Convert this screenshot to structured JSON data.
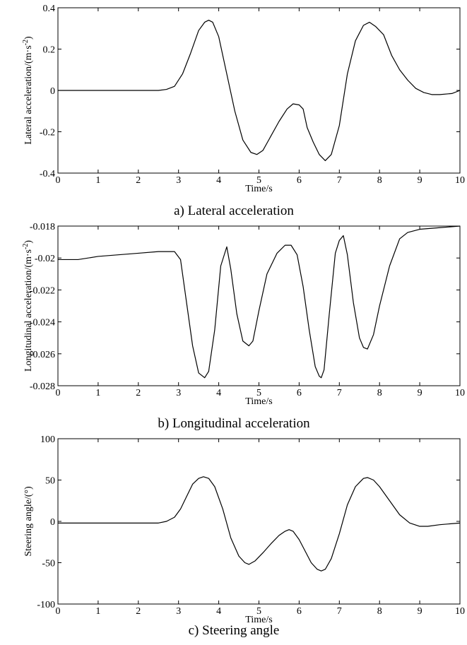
{
  "chart_data": [
    {
      "type": "line",
      "caption": "a) Lateral acceleration",
      "xlabel": "Time/s",
      "ylabel": "Lateral acceleration/(m·s-2)",
      "ylabel_base": "Lateral acceleration/(m·s",
      "ylabel_sup": "-2",
      "ylabel_tail": ")",
      "xlim": [
        0,
        10
      ],
      "ylim": [
        -0.4,
        0.4
      ],
      "xticks": [
        0,
        1,
        2,
        3,
        4,
        5,
        6,
        7,
        8,
        9,
        10
      ],
      "xtick_labels": [
        "0",
        "1",
        "2",
        "3",
        "4",
        "5",
        "6",
        "7",
        "8",
        "9",
        "10"
      ],
      "yticks": [
        -0.4,
        -0.2,
        0,
        0.2,
        0.4
      ],
      "ytick_labels": [
        "-0.4",
        "-0.2",
        "0",
        "0.2",
        "0.4"
      ],
      "grid": false,
      "series": [
        {
          "x": [
            0,
            0.5,
            1,
            1.5,
            2,
            2.5,
            2.7,
            2.9,
            3.1,
            3.3,
            3.5,
            3.65,
            3.75,
            3.85,
            4.0,
            4.2,
            4.4,
            4.6,
            4.8,
            4.95,
            5.1,
            5.3,
            5.5,
            5.7,
            5.85,
            6.0,
            6.1,
            6.2,
            6.35,
            6.5,
            6.65,
            6.8,
            7.0,
            7.2,
            7.4,
            7.6,
            7.75,
            7.9,
            8.1,
            8.3,
            8.5,
            8.7,
            8.9,
            9.1,
            9.3,
            9.5,
            9.8,
            10.0
          ],
          "y": [
            0,
            0,
            0,
            0,
            0,
            0,
            0.005,
            0.02,
            0.08,
            0.18,
            0.29,
            0.33,
            0.34,
            0.33,
            0.26,
            0.08,
            -0.1,
            -0.24,
            -0.3,
            -0.31,
            -0.29,
            -0.22,
            -0.15,
            -0.09,
            -0.065,
            -0.07,
            -0.09,
            -0.18,
            -0.25,
            -0.31,
            -0.34,
            -0.31,
            -0.17,
            0.08,
            0.24,
            0.315,
            0.33,
            0.31,
            0.27,
            0.17,
            0.1,
            0.05,
            0.01,
            -0.01,
            -0.02,
            -0.02,
            -0.015,
            0
          ]
        }
      ]
    },
    {
      "type": "line",
      "caption": "b) Longitudinal acceleration",
      "xlabel": "Time/s",
      "ylabel": "Longitudinal acceleration/(m·s-2)",
      "ylabel_base": "Longitudinal acceleration/(m·s",
      "ylabel_sup": "-2",
      "ylabel_tail": ")",
      "xlim": [
        0,
        10
      ],
      "ylim": [
        -0.028,
        -0.018
      ],
      "xticks": [
        0,
        1,
        2,
        3,
        4,
        5,
        6,
        7,
        8,
        9,
        10
      ],
      "xtick_labels": [
        "0",
        "1",
        "2",
        "3",
        "4",
        "5",
        "6",
        "7",
        "8",
        "9",
        "10"
      ],
      "yticks": [
        -0.028,
        -0.026,
        -0.024,
        -0.022,
        -0.02,
        -0.018
      ],
      "ytick_labels": [
        "-0.028",
        "-0.026",
        "-0.024",
        "-0.022",
        "-0.02",
        "-0.018"
      ],
      "grid": false,
      "series": [
        {
          "x": [
            0,
            0.5,
            1,
            1.5,
            2,
            2.5,
            2.9,
            3.05,
            3.2,
            3.35,
            3.5,
            3.6,
            3.65,
            3.75,
            3.9,
            4.05,
            4.2,
            4.3,
            4.45,
            4.6,
            4.75,
            4.85,
            5.0,
            5.2,
            5.45,
            5.65,
            5.8,
            5.95,
            6.1,
            6.25,
            6.4,
            6.5,
            6.55,
            6.62,
            6.75,
            6.9,
            7.0,
            7.1,
            7.2,
            7.35,
            7.5,
            7.6,
            7.7,
            7.85,
            8.0,
            8.25,
            8.5,
            8.7,
            9.0,
            9.5,
            10.0
          ],
          "y": [
            -0.0201,
            -0.0201,
            -0.0199,
            -0.0198,
            -0.0197,
            -0.0196,
            -0.0196,
            -0.0201,
            -0.0228,
            -0.0255,
            -0.0272,
            -0.0274,
            -0.0275,
            -0.0271,
            -0.0245,
            -0.0205,
            -0.0193,
            -0.0207,
            -0.0235,
            -0.0252,
            -0.0255,
            -0.0252,
            -0.0233,
            -0.021,
            -0.0197,
            -0.0192,
            -0.0192,
            -0.0198,
            -0.0218,
            -0.0245,
            -0.0268,
            -0.0274,
            -0.0275,
            -0.027,
            -0.0235,
            -0.0197,
            -0.0189,
            -0.0186,
            -0.0198,
            -0.0228,
            -0.025,
            -0.0256,
            -0.0257,
            -0.0248,
            -0.023,
            -0.0205,
            -0.0188,
            -0.0184,
            -0.0182,
            -0.0181,
            -0.018
          ]
        }
      ]
    },
    {
      "type": "line",
      "caption": "c) Steering angle",
      "xlabel": "Time/s",
      "ylabel": "Steering angle/(°)",
      "ylabel_base": "Steering angle/(°)",
      "ylabel_sup": "",
      "ylabel_tail": "",
      "xlim": [
        0,
        10
      ],
      "ylim": [
        -100,
        100
      ],
      "xticks": [
        0,
        1,
        2,
        3,
        4,
        5,
        6,
        7,
        8,
        9,
        10
      ],
      "xtick_labels": [
        "0",
        "1",
        "2",
        "3",
        "4",
        "5",
        "6",
        "7",
        "8",
        "9",
        "10"
      ],
      "yticks": [
        -100,
        -50,
        0,
        50,
        100
      ],
      "ytick_labels": [
        "-100",
        "-50",
        "0",
        "50",
        "100"
      ],
      "grid": false,
      "series": [
        {
          "x": [
            0,
            0.5,
            1,
            1.5,
            2,
            2.5,
            2.7,
            2.9,
            3.05,
            3.2,
            3.35,
            3.5,
            3.62,
            3.75,
            3.9,
            4.1,
            4.3,
            4.5,
            4.65,
            4.75,
            4.9,
            5.1,
            5.3,
            5.5,
            5.65,
            5.75,
            5.85,
            6.0,
            6.15,
            6.3,
            6.45,
            6.55,
            6.65,
            6.8,
            7.0,
            7.2,
            7.4,
            7.6,
            7.7,
            7.85,
            8.0,
            8.25,
            8.5,
            8.75,
            9.0,
            9.2,
            9.5,
            10.0
          ],
          "y": [
            -2,
            -2,
            -2,
            -2,
            -2,
            -2,
            0,
            5,
            15,
            30,
            45,
            52,
            54,
            52,
            42,
            15,
            -20,
            -42,
            -50,
            -52,
            -48,
            -38,
            -27,
            -17,
            -12,
            -10,
            -12,
            -22,
            -36,
            -50,
            -58,
            -60,
            -58,
            -45,
            -15,
            20,
            42,
            52,
            53,
            50,
            42,
            25,
            8,
            -2,
            -6,
            -6,
            -4,
            -2
          ]
        }
      ]
    }
  ]
}
